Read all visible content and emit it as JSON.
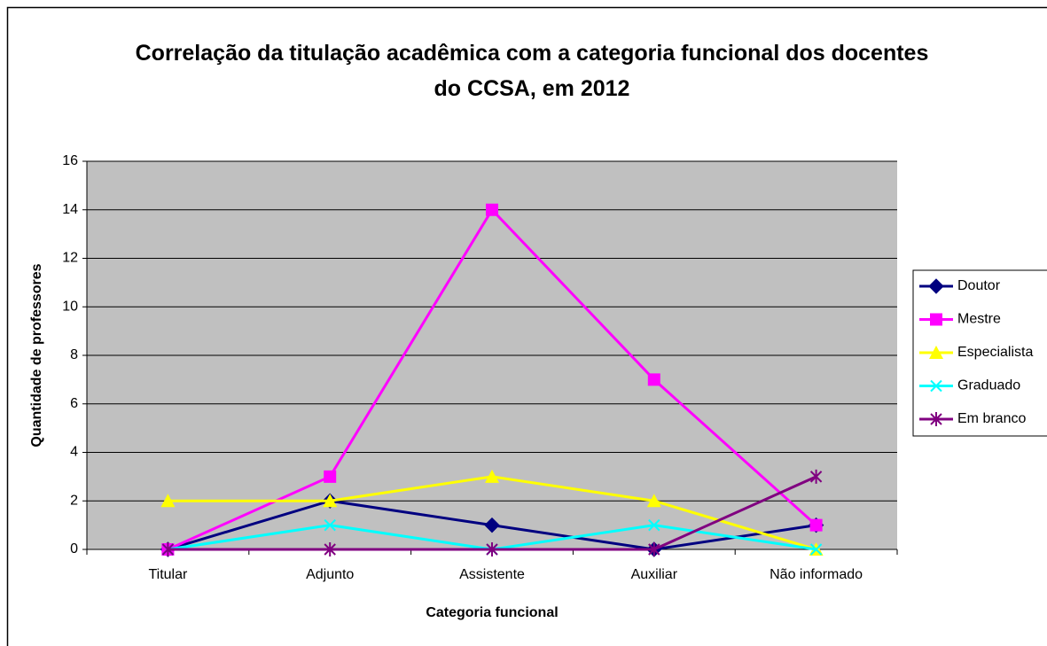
{
  "chart_data": {
    "type": "line",
    "title": "Correlação da titulação acadêmica com a categoria funcional dos docentes do CCSA, em 2012",
    "x_label": "Categoria funcional",
    "y_label": "Quantidade de professores",
    "categories": [
      "Titular",
      "Adjunto",
      "Assistente",
      "Auxiliar",
      "Não informado"
    ],
    "series": [
      {
        "name": "Doutor",
        "color": "#000080",
        "marker": "diamond",
        "values": [
          0,
          2,
          1,
          0,
          1
        ]
      },
      {
        "name": "Mestre",
        "color": "#ff00ff",
        "marker": "square",
        "values": [
          0,
          3,
          14,
          7,
          1
        ]
      },
      {
        "name": "Especialista",
        "color": "#ffff00",
        "marker": "triangle",
        "values": [
          2,
          2,
          3,
          2,
          0
        ]
      },
      {
        "name": "Graduado",
        "color": "#00ffff",
        "marker": "x",
        "values": [
          0,
          1,
          0,
          1,
          0
        ]
      },
      {
        "name": "Em branco",
        "color": "#800080",
        "marker": "star",
        "values": [
          0,
          0,
          0,
          0,
          3
        ]
      }
    ],
    "ylim": [
      0,
      16
    ],
    "yticks": [
      0,
      2,
      4,
      6,
      8,
      10,
      12,
      14,
      16
    ],
    "grid": true,
    "legend": "right"
  }
}
